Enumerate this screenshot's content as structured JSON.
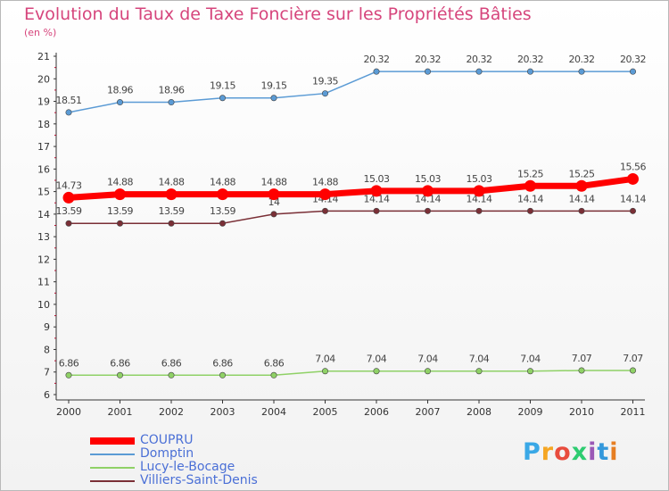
{
  "title": "Evolution du Taux de Taxe Foncière sur les Propriétés Bâties",
  "subtitle": "(en %)",
  "logo": {
    "text": "Proxiti",
    "letter_colors": [
      "#3aa8e6",
      "#f5a623",
      "#e84c3d",
      "#2ecc71",
      "#9b59b6",
      "#3498db",
      "#e67e22"
    ]
  },
  "chart_data": {
    "type": "line",
    "title": "Evolution du Taux de Taxe Foncière sur les Propriétés Bâties",
    "ylabel": "(en %)",
    "xlabel": "",
    "x": [
      "2000",
      "2001",
      "2002",
      "2003",
      "2004",
      "2005",
      "2006",
      "2007",
      "2008",
      "2009",
      "2010",
      "2011"
    ],
    "ylim": [
      6,
      21
    ],
    "yticks": [
      "6",
      "7",
      "8",
      "9",
      "10",
      "11",
      "12",
      "13",
      "14",
      "15",
      "16",
      "17",
      "18",
      "19",
      "20",
      "21"
    ],
    "grid": false,
    "legend_position": "bottom-left",
    "series": [
      {
        "name": "COUPRU",
        "color": "#ff0000",
        "emphasis": true,
        "values": [
          14.73,
          14.88,
          14.88,
          14.88,
          14.88,
          14.88,
          15.03,
          15.03,
          15.03,
          15.25,
          15.25,
          15.56
        ],
        "labels": [
          "14.73",
          "14.88",
          "14.88",
          "14.88",
          "14.88",
          "14.88",
          "15.03",
          "15.03",
          "15.03",
          "15.25",
          "15.25",
          "15.56"
        ]
      },
      {
        "name": "Domptin",
        "color": "#5b9bd5",
        "emphasis": false,
        "values": [
          18.51,
          18.96,
          18.96,
          19.15,
          19.15,
          19.35,
          20.32,
          20.32,
          20.32,
          20.32,
          20.32,
          20.32
        ],
        "labels": [
          "18.51",
          "18.96",
          "18.96",
          "19.15",
          "19.15",
          "19.35",
          "20.32",
          "20.32",
          "20.32",
          "20.32",
          "20.32",
          "20.32"
        ]
      },
      {
        "name": "Lucy-le-Bocage",
        "color": "#8fd166",
        "emphasis": false,
        "values": [
          6.86,
          6.86,
          6.86,
          6.86,
          6.86,
          7.04,
          7.04,
          7.04,
          7.04,
          7.04,
          7.07,
          7.07
        ],
        "labels": [
          "6.86",
          "6.86",
          "6.86",
          "6.86",
          "6.86",
          "7.04",
          "7.04",
          "7.04",
          "7.04",
          "7.04",
          "7.07",
          "7.07"
        ]
      },
      {
        "name": "Villiers-Saint-Denis",
        "color": "#7a2f36",
        "emphasis": false,
        "values": [
          13.59,
          13.59,
          13.59,
          13.59,
          14,
          14.14,
          14.14,
          14.14,
          14.14,
          14.14,
          14.14,
          14.14
        ],
        "labels": [
          "13.59",
          "13.59",
          "13.59",
          "13.59",
          "14",
          "14.14",
          "14.14",
          "14.14",
          "14.14",
          "14.14",
          "14.14",
          "14.14"
        ]
      }
    ]
  }
}
